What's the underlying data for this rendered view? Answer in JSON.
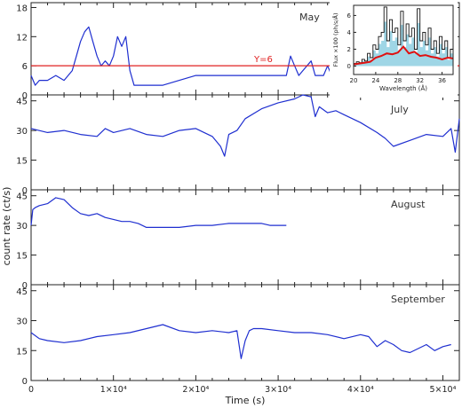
{
  "figure": {
    "ylabel": "count rate (ct/s)",
    "xlabel": "Time (s)",
    "x_tick_labels": [
      "0",
      "1×10⁴",
      "2×10⁴",
      "3×10⁴",
      "4×10⁴",
      "5×10⁴"
    ]
  },
  "colors": {
    "series": "#1f2fd0",
    "threshold": "#e02020",
    "frame": "#222222",
    "inset_fill": "#9fd6e6"
  },
  "chart_data": [
    {
      "type": "line",
      "title": "May",
      "xlim": [
        0,
        52000
      ],
      "ylim": [
        0,
        19
      ],
      "yticks": [
        0,
        6,
        12,
        18
      ],
      "threshold": {
        "label": "Y=6",
        "value": 6
      },
      "series": [
        {
          "x": [
            0,
            500,
            1000,
            2000,
            3000,
            4000,
            5000,
            5500,
            6000,
            6500,
            7000,
            7500,
            8000,
            8500,
            9000,
            9500,
            10000,
            10500,
            11000,
            11500,
            12000,
            12500,
            13000,
            14000,
            16000,
            18000,
            20000,
            22000,
            24000,
            26000,
            28000,
            30000,
            31000,
            31500,
            32000,
            32500,
            33000,
            34000,
            34500,
            35000,
            35500,
            36000,
            36500,
            37000,
            37500
          ],
          "y": [
            4,
            2,
            3,
            3,
            4,
            3,
            5,
            8,
            11,
            13,
            14,
            11,
            8,
            6,
            7,
            6,
            8,
            12,
            10,
            12,
            5,
            2,
            2,
            2,
            2,
            3,
            4,
            4,
            4,
            4,
            4,
            4,
            4,
            8,
            6,
            4,
            5,
            7,
            4,
            4,
            4,
            6,
            4,
            7,
            6
          ]
        }
      ]
    },
    {
      "type": "line",
      "title": "July",
      "xlim": [
        0,
        52000
      ],
      "ylim": [
        0,
        48
      ],
      "yticks": [
        0,
        15,
        30,
        45
      ],
      "series": [
        {
          "x": [
            0,
            2000,
            4000,
            6000,
            8000,
            9000,
            10000,
            12000,
            14000,
            16000,
            18000,
            20000,
            21000,
            22000,
            23000,
            23500,
            24000,
            25000,
            26000,
            28000,
            30000,
            32000,
            33000,
            34000,
            34500,
            35000,
            36000,
            37000,
            38000,
            40000,
            42000,
            43000,
            44000,
            46000,
            48000,
            50000,
            51000,
            51500,
            52000
          ],
          "y": [
            31,
            29,
            30,
            28,
            27,
            31,
            29,
            31,
            28,
            27,
            30,
            31,
            29,
            27,
            22,
            17,
            28,
            30,
            36,
            41,
            44,
            46,
            48,
            47,
            37,
            42,
            39,
            40,
            38,
            34,
            29,
            26,
            22,
            25,
            28,
            27,
            31,
            19,
            36
          ]
        }
      ]
    },
    {
      "type": "line",
      "title": "August",
      "xlim": [
        0,
        52000
      ],
      "ylim": [
        0,
        48
      ],
      "yticks": [
        0,
        15,
        30,
        45
      ],
      "series": [
        {
          "x": [
            0,
            200,
            500,
            1000,
            2000,
            3000,
            4000,
            5000,
            6000,
            7000,
            8000,
            9000,
            10000,
            11000,
            12000,
            13000,
            14000,
            16000,
            18000,
            20000,
            22000,
            24000,
            26000,
            28000,
            29000,
            30000,
            31000
          ],
          "y": [
            30,
            38,
            39,
            40,
            41,
            44,
            43,
            39,
            36,
            35,
            36,
            34,
            33,
            32,
            32,
            31,
            29,
            29,
            29,
            30,
            30,
            31,
            31,
            31,
            30,
            30,
            30
          ]
        }
      ]
    },
    {
      "type": "line",
      "title": "September",
      "xlim": [
        0,
        52000
      ],
      "ylim": [
        0,
        48
      ],
      "yticks": [
        0,
        15,
        30,
        45
      ],
      "series": [
        {
          "x": [
            0,
            1000,
            2000,
            4000,
            6000,
            8000,
            10000,
            12000,
            14000,
            16000,
            18000,
            20000,
            22000,
            24000,
            25000,
            25500,
            26000,
            26500,
            27000,
            28000,
            30000,
            32000,
            34000,
            36000,
            38000,
            40000,
            41000,
            42000,
            43000,
            44000,
            45000,
            46000,
            47000,
            48000,
            49000,
            50000,
            51000
          ],
          "y": [
            24,
            21,
            20,
            19,
            20,
            22,
            23,
            24,
            26,
            28,
            25,
            24,
            25,
            24,
            25,
            11,
            20,
            25,
            26,
            26,
            25,
            24,
            24,
            23,
            21,
            23,
            22,
            17,
            20,
            18,
            15,
            14,
            16,
            18,
            15,
            17,
            18
          ]
        }
      ]
    }
  ],
  "inset": {
    "type": "bar",
    "xlabel": "Wavelength (Å)",
    "ylabel": "Flux ×100 (ph/s/Å)",
    "xlim": [
      20,
      38
    ],
    "ylim": [
      -1,
      7.2
    ],
    "xticks": [
      20,
      24,
      28,
      32,
      36
    ],
    "yticks": [
      0,
      2,
      4,
      6
    ],
    "series": [
      {
        "color": "black",
        "x": [
          20,
          20.5,
          21,
          21.5,
          22,
          22.5,
          23,
          23.5,
          24,
          24.5,
          25,
          25.5,
          26,
          26.5,
          27,
          27.5,
          28,
          28.5,
          29,
          29.5,
          30,
          30.5,
          31,
          31.5,
          32,
          32.5,
          33,
          33.5,
          34,
          34.5,
          35,
          35.5,
          36,
          36.5,
          37,
          37.5
        ],
        "values": [
          0.3,
          0.5,
          0.4,
          0.8,
          0.6,
          1.5,
          1.0,
          2.5,
          2.0,
          3.5,
          4.0,
          7.0,
          3.0,
          5.5,
          4.0,
          4.5,
          2.5,
          6.5,
          3.0,
          5.0,
          3.5,
          4.5,
          2.0,
          6.8,
          3.0,
          4.0,
          2.5,
          4.5,
          2.0,
          3.0,
          1.5,
          3.5,
          2.0,
          3.0,
          1.0,
          2.0
        ]
      },
      {
        "color": "red",
        "x": [
          20,
          21,
          22,
          23,
          24,
          25,
          26,
          27,
          28,
          29,
          30,
          31,
          32,
          33,
          34,
          35,
          36,
          37,
          38
        ],
        "values": [
          0.2,
          0.3,
          0.4,
          0.5,
          1.0,
          1.2,
          1.5,
          1.4,
          1.6,
          2.3,
          1.5,
          1.7,
          1.2,
          1.3,
          1.1,
          1.0,
          0.8,
          1.0,
          0.9
        ]
      }
    ]
  }
}
